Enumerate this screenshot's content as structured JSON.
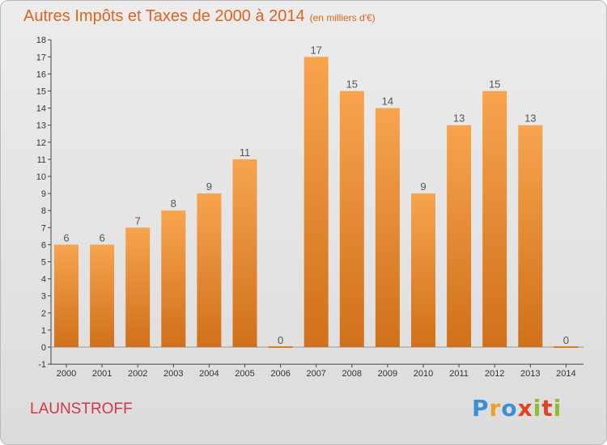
{
  "title": "Autres Impôts et Taxes de 2000 à 2014",
  "unit_note": "(en milliers d'€)",
  "commune": "LAUNSTROFF",
  "logo": {
    "letters": [
      "P",
      "r",
      "o",
      "x",
      "i",
      "t",
      "i"
    ],
    "colors": [
      "#3a8fd8",
      "#f0a020",
      "#3a8fd8",
      "#e0441e",
      "#8cbf2a",
      "#e0441e",
      "#8cbf2a"
    ]
  },
  "colors": {
    "bar_top": "#f7a44e",
    "bar_bottom": "#d0701a",
    "title": "#e0641e",
    "commune": "#d8334a"
  },
  "chart_data": {
    "type": "bar",
    "title": "Autres Impôts et Taxes de 2000 à 2014",
    "xlabel": "",
    "ylabel": "",
    "categories": [
      "2000",
      "2001",
      "2002",
      "2003",
      "2004",
      "2005",
      "2006",
      "2007",
      "2008",
      "2009",
      "2010",
      "2011",
      "2012",
      "2013",
      "2014"
    ],
    "values": [
      6,
      6,
      7,
      8,
      9,
      11,
      0,
      17,
      15,
      14,
      9,
      13,
      15,
      13,
      0
    ],
    "ylim": [
      -1,
      18
    ],
    "yticks": [
      -1,
      0,
      1,
      2,
      3,
      4,
      5,
      6,
      7,
      8,
      9,
      10,
      11,
      12,
      13,
      14,
      15,
      16,
      17,
      18
    ],
    "grid": false,
    "legend": "none"
  }
}
